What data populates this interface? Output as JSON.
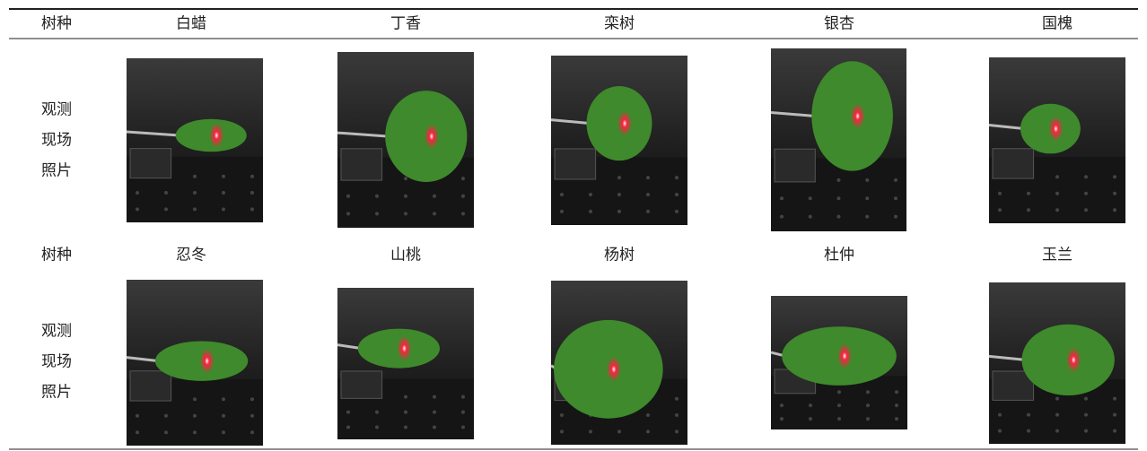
{
  "table": {
    "rows": [
      {
        "label": "树种",
        "cells": [
          "白蜡",
          "丁香",
          "栾树",
          "银杏",
          "国槐"
        ]
      },
      {
        "label": [
          "观测",
          "现场",
          "照片"
        ]
      },
      {
        "label": "树种",
        "cells": [
          "忍冬",
          "山桃",
          "杨树",
          "杜仲",
          "玉兰"
        ]
      },
      {
        "label": [
          "观测",
          "现场",
          "照片"
        ]
      }
    ]
  }
}
